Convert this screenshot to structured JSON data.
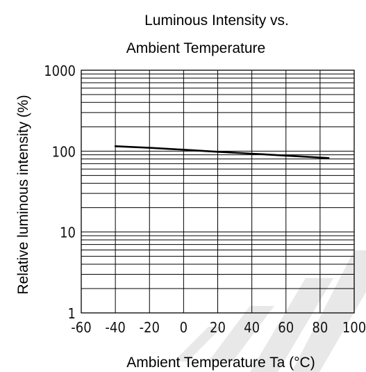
{
  "chart_data": {
    "type": "line",
    "title_line1": "Luminous Intensity vs.",
    "title_line2": "Ambient Temperature",
    "xlabel": "Ambient Temperature Ta (°C)",
    "ylabel": "Relative luminous intensity (%)",
    "xlim": [
      -60,
      100
    ],
    "ylim": [
      1,
      1000
    ],
    "yscale": "log",
    "grid": true,
    "x_ticks": [
      {
        "value": -60,
        "label": "-60"
      },
      {
        "value": -40,
        "label": "-40"
      },
      {
        "value": -20,
        "label": "-20"
      },
      {
        "value": 0,
        "label": "0"
      },
      {
        "value": 20,
        "label": "20"
      },
      {
        "value": 40,
        "label": "40"
      },
      {
        "value": 60,
        "label": "60"
      },
      {
        "value": 80,
        "label": "80"
      },
      {
        "value": 100,
        "label": "100"
      }
    ],
    "y_ticks": [
      {
        "value": 1,
        "label": "1"
      },
      {
        "value": 10,
        "label": "10"
      },
      {
        "value": 100,
        "label": "100"
      },
      {
        "value": 1000,
        "label": "1000"
      }
    ],
    "series": [
      {
        "x": [
          -40,
          -20,
          0,
          20,
          40,
          60,
          85
        ],
        "y": [
          115,
          110,
          104,
          98,
          93,
          88,
          82
        ]
      }
    ]
  }
}
